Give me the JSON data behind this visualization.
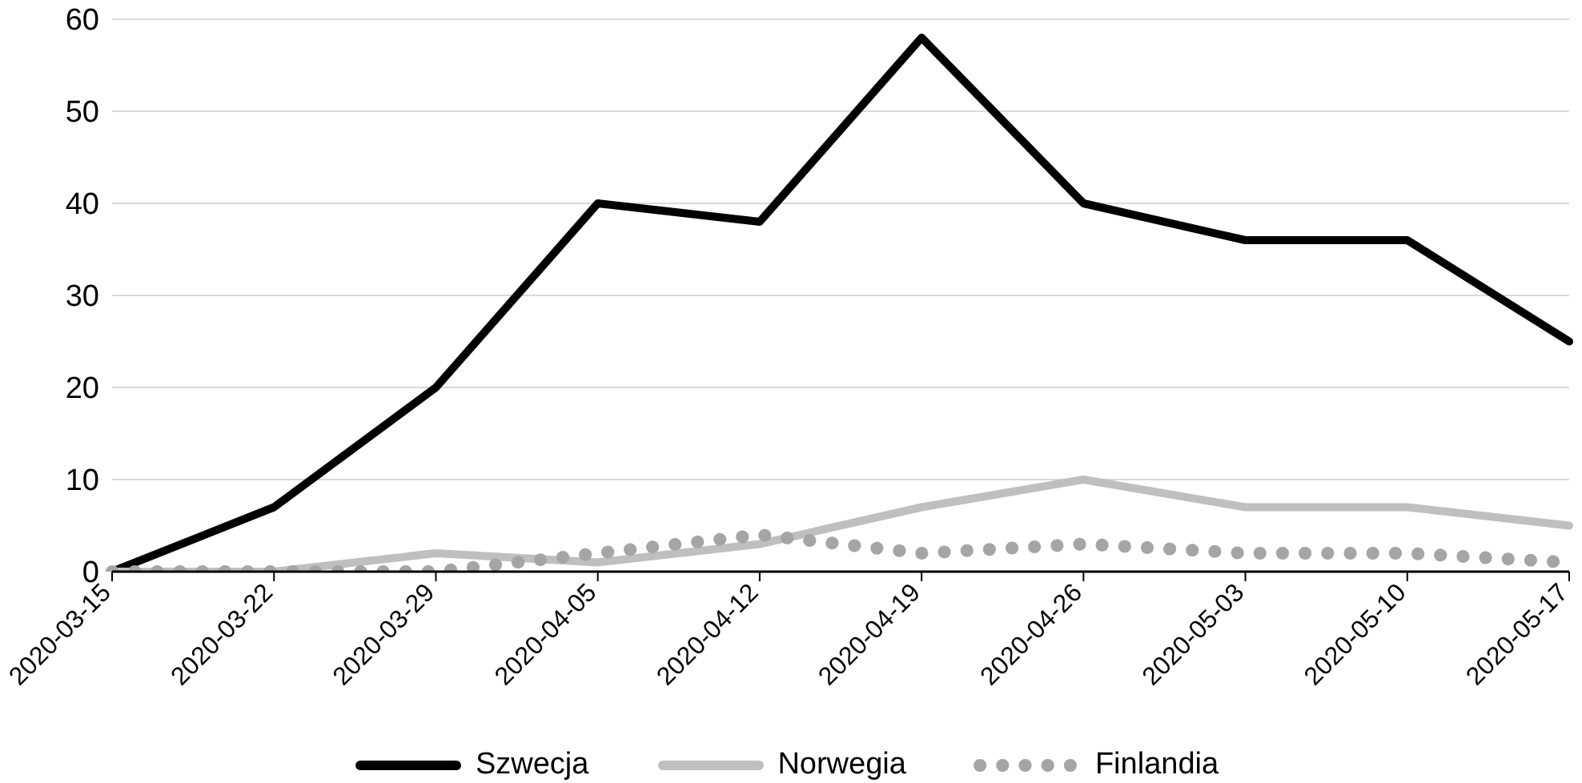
{
  "chart_data": {
    "type": "line",
    "categories": [
      "2020-03-15",
      "2020-03-22",
      "2020-03-29",
      "2020-04-05",
      "2020-04-12",
      "2020-04-19",
      "2020-04-26",
      "2020-05-03",
      "2020-05-10",
      "2020-05-17"
    ],
    "series": [
      {
        "name": "Szwecja",
        "color": "#000000",
        "line_style": "solid",
        "values": [
          0,
          7,
          20,
          40,
          38,
          58,
          40,
          36,
          36,
          25
        ]
      },
      {
        "name": "Norwegia",
        "color": "#bfbfbf",
        "line_style": "solid",
        "values": [
          0,
          0,
          2,
          1,
          3,
          7,
          10,
          7,
          7,
          5
        ]
      },
      {
        "name": "Finlandia",
        "color": "#a5a5a5",
        "line_style": "dotted",
        "values": [
          0,
          0,
          0,
          2,
          4,
          2,
          3,
          2,
          2,
          1
        ]
      }
    ],
    "ylim": [
      0,
      60
    ],
    "yticks": [
      0,
      10,
      20,
      30,
      40,
      50,
      60
    ],
    "grid": "y",
    "legend": "bottom",
    "marker": "none"
  }
}
